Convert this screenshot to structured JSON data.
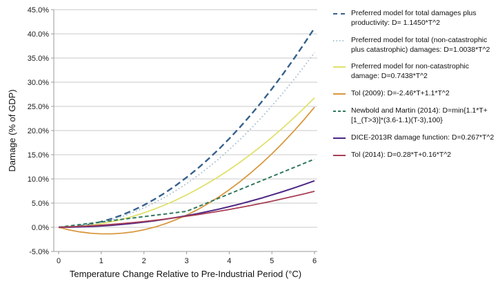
{
  "background": "#ffffff",
  "chart_data": {
    "type": "line",
    "title": "",
    "xlabel": "Temperature Change Relative to Pre-Industrial Period (°C)",
    "ylabel": "Damage (% of GDP)",
    "x_range": [
      0,
      6
    ],
    "y_range": [
      -5,
      45
    ],
    "grid": "horizontal",
    "legend_position": "right",
    "grid_color": "#c9c9c9",
    "axis_color": "#9a9a9a",
    "x_ticks": {
      "values": [
        0,
        1,
        2,
        3,
        4,
        5,
        6
      ],
      "labels": [
        "0",
        "1",
        "2",
        "3",
        "4",
        "5",
        "6"
      ]
    },
    "y_ticks": {
      "values": [
        -5,
        0,
        5,
        10,
        15,
        20,
        25,
        30,
        35,
        40,
        45
      ],
      "labels": [
        "-5.0%",
        "0.0%",
        "5.0%",
        "10.0%",
        "15.0%",
        "20.0%",
        "25.0%",
        "30.0%",
        "35.0%",
        "40.0%",
        "45.0%"
      ]
    },
    "x": [
      0,
      0.25,
      0.5,
      0.75,
      1,
      1.25,
      1.5,
      1.75,
      2,
      2.25,
      2.5,
      2.75,
      3,
      3.25,
      3.5,
      3.75,
      4,
      4.25,
      4.5,
      4.75,
      5,
      5.25,
      5.5,
      5.75,
      6
    ],
    "series": [
      {
        "name": "preferred-total-plus-productivity",
        "label": "Preferred model for total damages plus productivity: D= 1.1450*T^2",
        "color": "#35618c",
        "dash": "9,5",
        "legend_dash": "6,5",
        "width": 2.4,
        "values": [
          0,
          0.07,
          0.29,
          0.64,
          1.15,
          1.79,
          2.58,
          3.51,
          4.58,
          5.8,
          7.16,
          8.66,
          10.31,
          12.09,
          14.03,
          16.1,
          18.32,
          20.68,
          23.19,
          25.83,
          28.63,
          31.56,
          34.64,
          37.86,
          41.22
        ]
      },
      {
        "name": "preferred-total-damages",
        "label": "Preferred model for total (non-catastrophic plus catastrophic) damages: D=1.0038*T^2",
        "color": "#a8c0d0",
        "dash": "1.8,3.2",
        "legend_dash": "1.5,3",
        "width": 1.8,
        "values": [
          0,
          0.06,
          0.25,
          0.56,
          1,
          1.57,
          2.26,
          3.07,
          4.02,
          5.08,
          6.27,
          7.59,
          9.03,
          10.6,
          12.3,
          14.12,
          16.06,
          18.13,
          20.33,
          22.65,
          25.1,
          27.67,
          30.36,
          33.19,
          36.14
        ]
      },
      {
        "name": "preferred-non-catastrophic",
        "label": "Preferred model for non-catastrophic damage: D=0.7438*T^2",
        "color": "#e0e06c",
        "dash": null,
        "legend_dash": null,
        "width": 1.8,
        "values": [
          0,
          0.05,
          0.19,
          0.42,
          0.74,
          1.16,
          1.67,
          2.28,
          2.98,
          3.77,
          4.65,
          5.62,
          6.69,
          7.86,
          9.11,
          10.46,
          11.9,
          13.44,
          15.06,
          16.78,
          18.6,
          20.5,
          22.5,
          24.59,
          26.78
        ]
      },
      {
        "name": "tol-2009",
        "label": "Tol (2009): D=-2.46*T+1.1*T^2",
        "color": "#d8983e",
        "dash": null,
        "legend_dash": null,
        "width": 1.8,
        "values": [
          0,
          -0.55,
          -0.96,
          -1.23,
          -1.36,
          -1.36,
          -1.22,
          -0.94,
          -0.52,
          0.03,
          0.73,
          1.55,
          2.52,
          3.62,
          4.87,
          6.24,
          7.76,
          9.41,
          11.21,
          13.13,
          15.2,
          17.4,
          19.75,
          22.22,
          24.84
        ]
      },
      {
        "name": "newbold-martin-2014",
        "label": "Newbold and Martin (2014): D=min{1.1*T+[1_(T>3)]*(3.6-1.1)(T-3),100}",
        "color": "#30795a",
        "dash": "5.5,3.5",
        "legend_dash": "4,3",
        "width": 2,
        "values": [
          0,
          0.28,
          0.55,
          0.83,
          1.1,
          1.38,
          1.65,
          1.93,
          2.2,
          2.48,
          2.75,
          3.03,
          3.3,
          4.2,
          5.1,
          6,
          6.9,
          7.8,
          8.7,
          9.6,
          10.5,
          11.4,
          12.3,
          13.2,
          14.1
        ]
      },
      {
        "name": "dice-2013r",
        "label": "DICE-2013R damage function: D=0.267*T^2",
        "color": "#4c2583",
        "dash": null,
        "legend_dash": null,
        "width": 2,
        "values": [
          0,
          0.02,
          0.07,
          0.15,
          0.27,
          0.42,
          0.6,
          0.82,
          1.07,
          1.35,
          1.67,
          2.02,
          2.4,
          2.82,
          3.27,
          3.75,
          4.27,
          4.82,
          5.41,
          6.02,
          6.68,
          7.36,
          8.08,
          8.83,
          9.61
        ]
      },
      {
        "name": "tol-2014",
        "label": "Tol (2014): D=0.28*T+0.16*T^2",
        "color": "#a83e55",
        "dash": null,
        "legend_dash": null,
        "width": 1.8,
        "values": [
          0,
          0.08,
          0.18,
          0.3,
          0.44,
          0.6,
          0.78,
          0.98,
          1.2,
          1.44,
          1.7,
          1.98,
          2.28,
          2.6,
          2.94,
          3.3,
          3.68,
          4.08,
          4.5,
          4.94,
          5.4,
          5.88,
          6.38,
          6.9,
          7.44
        ]
      }
    ]
  }
}
